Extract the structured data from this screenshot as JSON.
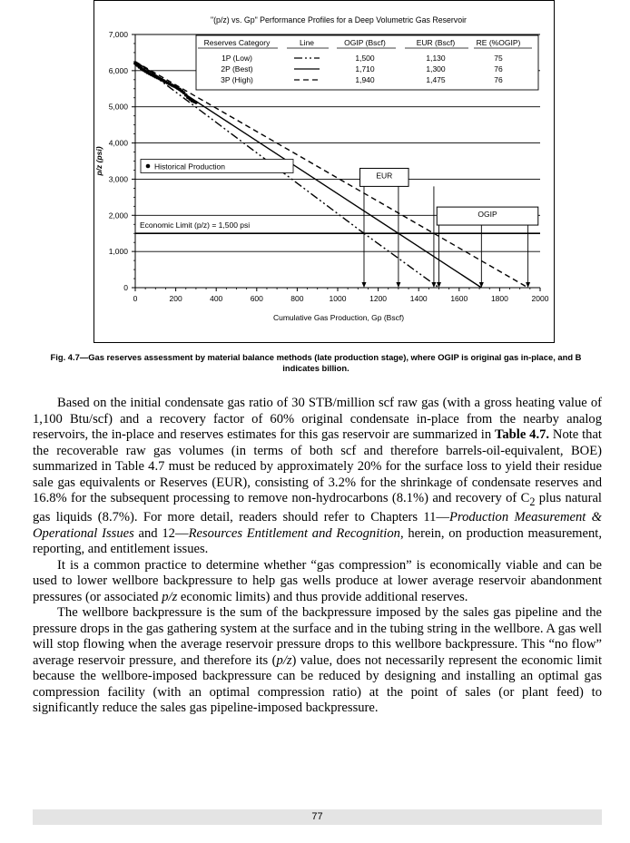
{
  "chart_data": {
    "type": "line",
    "title": "\"(p/z) vs. Gp\"   Performance Profiles for a Deep Volumetric Gas Reservoir",
    "xlabel": "Cumulative Gas Production,  Gp (Bscf)",
    "ylabel": "p/z (psi)",
    "xlim": [
      0,
      2000
    ],
    "ylim": [
      0,
      7000
    ],
    "x_ticks": [
      "0",
      "200",
      "400",
      "600",
      "800",
      "1000",
      "1200",
      "1400",
      "1600",
      "1800",
      "2000"
    ],
    "y_ticks": [
      "0",
      "1,000",
      "2,000",
      "3,000",
      "4,000",
      "5,000",
      "6,000",
      "7,000"
    ],
    "table": {
      "headers": [
        "Reserves Category",
        "Line",
        "OGIP (Bscf)",
        "EUR (Bscf)",
        "RE (%OGIP)"
      ],
      "rows": [
        {
          "category": "1P (Low)",
          "ogip": "1,500",
          "eur": "1,130",
          "re": "75"
        },
        {
          "category": "2P (Best)",
          "ogip": "1,710",
          "eur": "1,300",
          "re": "76"
        },
        {
          "category": "3P (High)",
          "ogip": "1,940",
          "eur": "1,475",
          "re": "76"
        }
      ]
    },
    "series": [
      {
        "line_style": "dash-dot-dot",
        "points": [
          [
            0,
            6250
          ],
          [
            1130,
            1500
          ],
          [
            1500,
            0
          ]
        ]
      },
      {
        "line_style": "solid",
        "points": [
          [
            0,
            6250
          ],
          [
            1300,
            1500
          ],
          [
            1710,
            0
          ]
        ]
      },
      {
        "line_style": "dashed",
        "points": [
          [
            0,
            6250
          ],
          [
            1475,
            1500
          ],
          [
            1940,
            0
          ]
        ]
      }
    ],
    "historical_production": {
      "legend": "Historical Production",
      "x": [
        0,
        20,
        40,
        60,
        80,
        100,
        120,
        140,
        160,
        180,
        200,
        220,
        240,
        260,
        280,
        300
      ],
      "y": [
        6200,
        6100,
        6020,
        5950,
        5890,
        5830,
        5780,
        5720,
        5660,
        5600,
        5550,
        5480,
        5390,
        5260,
        5170,
        5120
      ]
    },
    "economic_limit": {
      "value": 1500,
      "label": "Economic Limit  (p/z) = 1,500  psi"
    },
    "annotations": [
      {
        "text": "EUR",
        "arrows_x": [
          1130,
          1300,
          1475
        ]
      },
      {
        "text": "OGIP",
        "arrows_x": [
          1500,
          1710,
          1940
        ]
      }
    ]
  },
  "figure": {
    "caption": "Fig. 4.7—Gas reserves assessment by material balance methods (late production stage), where OGIP is original gas in-place, and B indicates billion."
  },
  "body": {
    "p1_a": "Based on the initial condensate gas ratio of 30 STB/million scf raw gas (with a gross heating value of 1,100 Btu/scf) and a recovery factor of 60% original condensate in-place from the nearby analog reservoirs, the in-place and reserves estimates for this gas reservoir are summarized in ",
    "p1_table": "Table 4.7.",
    "p1_b": " Note that the recoverable raw gas volumes (in terms of both scf and therefore barrels-oil-equivalent, BOE) summarized in Table 4.7 must be reduced by approximately 20% for the surface loss to yield their residue sale gas equivalents or Reserves (EUR), consisting of 3.2% for the shrinkage of condensate reserves and 16.8% for the subsequent processing to remove non-hydrocarbons (8.1%) and recovery of C",
    "p1_sub": "2",
    "p1_c": " plus natural gas liquids (8.7%). For more detail, readers should refer to Chapters 11—",
    "p1_ch11": "Production Measurement & Operational Issues",
    "p1_d": " and 12—",
    "p1_ch12": "Resources Entitlement and Recognition",
    "p1_e": ", herein, on production measurement, reporting, and entitlement issues.",
    "p2_a": "It is a common practice to determine whether “gas compression” is economically viable and can be used to lower wellbore backpressure to help gas wells produce at lower average reservoir abandonment pressures (or associated ",
    "p2_pz": "p/z",
    "p2_b": " economic limits) and thus provide additional reserves.",
    "p3_a": "The wellbore backpressure is the sum of the backpressure imposed by the sales gas pipeline and the pressure drops in the gas gathering system at the surface and in the tubing string in the wellbore. A gas well will stop flowing when the average reservoir pressure drops to this wellbore backpressure. This “no flow” average reservoir pressure, and therefore its (",
    "p3_pz": "p/z",
    "p3_b": ") value, does not necessarily represent the economic limit because the wellbore-imposed backpressure can be reduced by designing and installing an optimal gas compression facility (with an optimal compression ratio) at the point of sales (or plant feed) to significantly reduce the sales gas pipeline-imposed backpressure."
  },
  "footer": {
    "page_number": "77"
  }
}
